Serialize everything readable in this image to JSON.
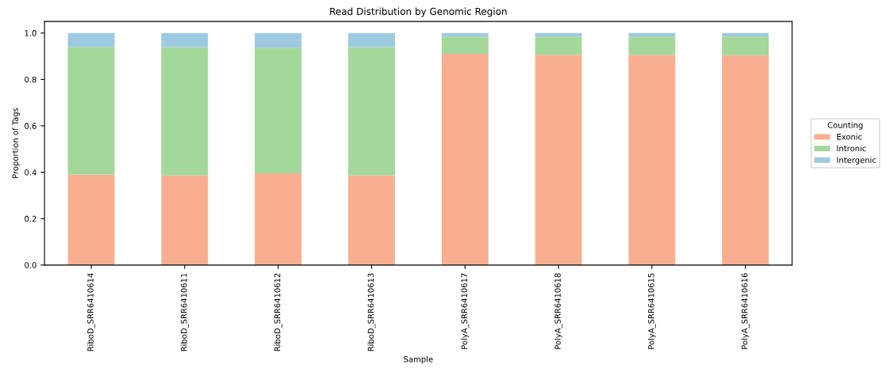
{
  "chart_data": {
    "type": "bar",
    "title": "Read Distribution by Genomic Region",
    "xlabel": "Sample",
    "ylabel": "Proportion of Tags",
    "legend_title": "Counting",
    "categories": [
      "RiboD_SRR6410614",
      "RiboD_SRR6410611",
      "RiboD_SRR6410612",
      "RiboD_SRR6410613",
      "PolyA_SRR6410617",
      "PolyA_SRR6410618",
      "PolyA_SRR6410615",
      "PolyA_SRR6410616"
    ],
    "series": [
      {
        "name": "Exonic",
        "color": "#f9ae8f",
        "values": [
          0.39,
          0.387,
          0.395,
          0.387,
          0.91,
          0.906,
          0.906,
          0.904
        ]
      },
      {
        "name": "Intronic",
        "color": "#a3d89a",
        "values": [
          0.55,
          0.552,
          0.542,
          0.552,
          0.075,
          0.079,
          0.079,
          0.081
        ]
      },
      {
        "name": "Intergenic",
        "color": "#9ecae1",
        "values": [
          0.06,
          0.061,
          0.063,
          0.061,
          0.015,
          0.015,
          0.015,
          0.015
        ]
      }
    ],
    "stacked": true,
    "ylim": [
      0,
      1.05
    ],
    "yticks": [
      {
        "value": 0,
        "label": "0.0"
      },
      {
        "value": 0.2,
        "label": "0.2"
      },
      {
        "value": 0.4,
        "label": "0.4"
      },
      {
        "value": 0.6,
        "label": "0.6"
      },
      {
        "value": 0.8,
        "label": "0.8"
      },
      {
        "value": 1,
        "label": "1.0"
      }
    ],
    "grid": false,
    "legend": "right"
  }
}
